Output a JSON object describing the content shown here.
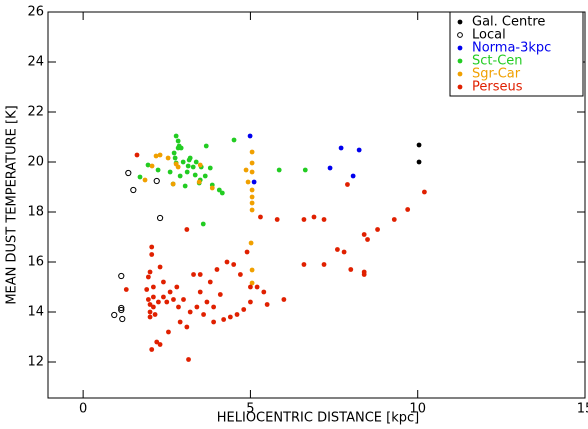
{
  "chart_data": {
    "type": "scatter",
    "x_label": "HELIOCENTRIC DISTANCE [kpc]",
    "y_label": "MEAN DUST TEMPERATURE [K]",
    "xlim": [
      -1.05,
      15
    ],
    "ylim": [
      10.56,
      26
    ],
    "xticks": [
      0,
      5,
      10,
      15
    ],
    "yticks": [
      12,
      14,
      16,
      18,
      20,
      22,
      24,
      26
    ],
    "legend": "upper right",
    "series": [
      {
        "name": "Gal. Centre",
        "color": "#000000",
        "marker": "filled",
        "x": [
          10.04,
          10.04
        ],
        "values": [
          20.68,
          20.0
        ]
      },
      {
        "name": "Local",
        "color": "#000000",
        "marker": "open",
        "x": [
          1.35,
          1.5,
          2.2,
          2.3,
          1.14,
          1.14,
          1.14,
          0.93,
          1.17
        ],
        "values": [
          19.56,
          18.88,
          19.24,
          17.76,
          15.44,
          14.16,
          14.08,
          13.88,
          13.72
        ]
      },
      {
        "name": "Norma-3kpc",
        "color": "#0000ee",
        "marker": "filled",
        "x": [
          4.99,
          5.11,
          7.38,
          7.71,
          8.25,
          8.07
        ],
        "values": [
          21.04,
          19.2,
          19.76,
          20.56,
          20.48,
          19.44
        ]
      },
      {
        "name": "Sct-Cen",
        "color": "#22cc22",
        "marker": "filled",
        "x": [
          1.7,
          1.94,
          2.24,
          2.6,
          2.69,
          3.05,
          3.14,
          3.29,
          3.53,
          2.72,
          2.75,
          2.84,
          2.9,
          2.93,
          3.17,
          3.35,
          3.47,
          3.65,
          3.68,
          3.2,
          3.8,
          3.86,
          4.07,
          4.16,
          4.51,
          3.59,
          5.86,
          6.64,
          2.78,
          2.87,
          2.99,
          3.11,
          3.38,
          3.5,
          2.84,
          2.78
        ],
        "values": [
          19.4,
          19.88,
          19.68,
          19.6,
          19.12,
          19.04,
          19.84,
          19.8,
          19.8,
          20.36,
          20.16,
          20.56,
          19.44,
          20.56,
          20.08,
          19.48,
          19.16,
          19.44,
          20.64,
          20.16,
          19.76,
          19.08,
          18.88,
          18.76,
          20.88,
          17.52,
          19.68,
          19.68,
          19.96,
          20.64,
          20.0,
          19.6,
          20.0,
          19.28,
          20.84,
          21.04
        ]
      },
      {
        "name": "Sgr-Car",
        "color": "#f0a000",
        "marker": "filled",
        "x": [
          1.85,
          2.06,
          2.18,
          2.3,
          2.54,
          2.78,
          2.84,
          2.69,
          3.5,
          3.47,
          3.86,
          4.87,
          4.93,
          5.05,
          5.05,
          5.05,
          5.05,
          5.05,
          5.05,
          5.05,
          5.05,
          5.05,
          5.02
        ],
        "values": [
          19.28,
          19.84,
          20.24,
          20.28,
          20.16,
          19.92,
          19.8,
          19.12,
          19.88,
          19.2,
          18.96,
          19.68,
          19.2,
          20.4,
          19.96,
          19.6,
          18.88,
          18.6,
          18.36,
          18.08,
          15.68,
          15.16,
          16.76
        ]
      },
      {
        "name": "Perseus",
        "color": "#e02000",
        "marker": "filled",
        "x": [
          1.61,
          1.29,
          1.9,
          1.95,
          2.0,
          2.0,
          2.0,
          2.05,
          2.05,
          2.0,
          1.95,
          2.1,
          2.1,
          2.1,
          2.15,
          2.2,
          2.05,
          2.3,
          2.25,
          2.3,
          2.4,
          2.4,
          2.5,
          2.55,
          2.6,
          2.7,
          2.8,
          2.85,
          2.9,
          3.0,
          3.1,
          3.15,
          3.1,
          3.2,
          3.3,
          3.4,
          3.5,
          3.5,
          3.6,
          3.7,
          3.8,
          3.9,
          3.9,
          4.0,
          4.1,
          4.2,
          4.3,
          4.4,
          4.5,
          4.6,
          4.7,
          4.8,
          4.9,
          5.0,
          5.0,
          5.2,
          5.3,
          5.4,
          5.5,
          5.8,
          6.0,
          6.6,
          6.6,
          6.9,
          7.2,
          7.2,
          7.6,
          7.8,
          7.9,
          8.0,
          8.4,
          8.4,
          8.4,
          8.5,
          8.8,
          9.3,
          9.7,
          10.2
        ],
        "values": [
          20.28,
          14.9,
          14.9,
          14.5,
          14.3,
          14.0,
          13.8,
          16.6,
          16.3,
          15.6,
          15.4,
          15.0,
          14.6,
          14.2,
          13.9,
          12.8,
          12.5,
          12.7,
          14.4,
          15.8,
          15.2,
          14.6,
          14.4,
          13.2,
          14.8,
          14.5,
          15.0,
          14.2,
          13.6,
          14.5,
          13.4,
          12.1,
          17.3,
          14.0,
          15.5,
          14.2,
          14.8,
          15.5,
          13.9,
          14.4,
          15.2,
          13.6,
          14.2,
          15.7,
          14.7,
          13.7,
          16.0,
          13.8,
          15.9,
          13.9,
          15.5,
          14.1,
          16.4,
          15.0,
          14.4,
          15.0,
          17.8,
          14.8,
          14.3,
          17.7,
          14.5,
          15.9,
          17.7,
          17.8,
          15.9,
          17.7,
          16.5,
          16.4,
          19.1,
          15.7,
          15.6,
          15.5,
          17.1,
          16.9,
          17.3,
          17.7,
          18.1,
          18.8
        ]
      }
    ]
  }
}
